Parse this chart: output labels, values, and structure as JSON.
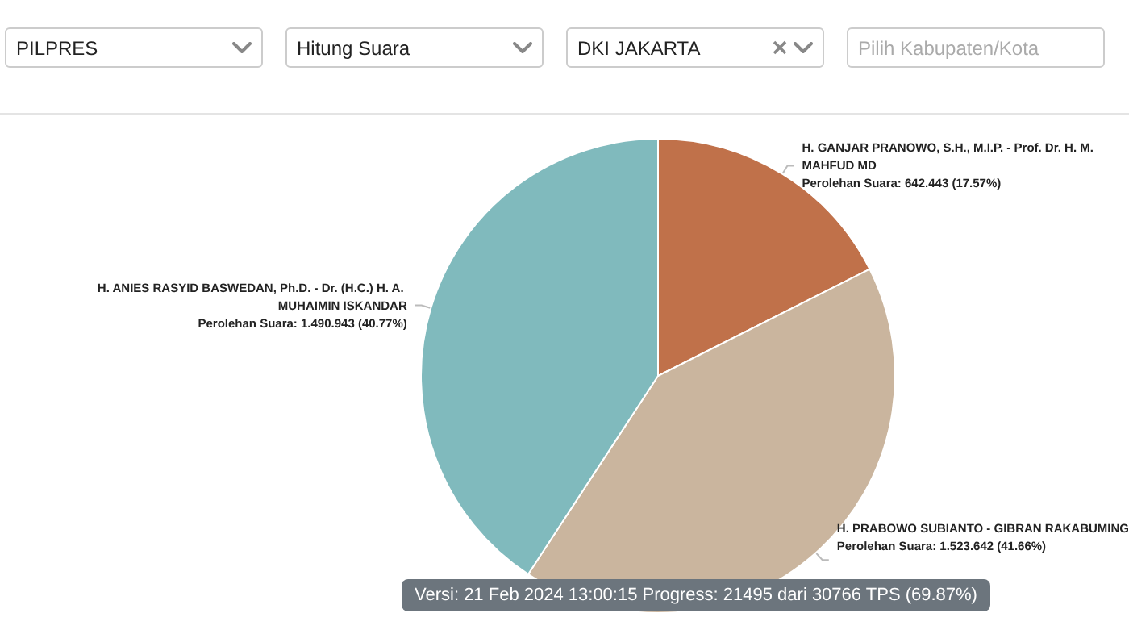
{
  "chart_data": {
    "type": "pie",
    "categories": [
      "H. GANJAR PRANOWO, S.H., M.I.P. - Prof. Dr. H. M. MAHFUD MD",
      "H. PRABOWO SUBIANTO - GIBRAN RAKABUMING",
      "H. ANIES RASYID BASWEDAN, Ph.D. - Dr. (H.C.) H. A. MUHAIMIN ISKANDAR"
    ],
    "values": [
      17.57,
      41.66,
      40.77
    ],
    "value_labels": [
      "Perolehan Suara: 642.443 (17.57%)",
      "Perolehan Suara: 1.523.642 (41.66%)",
      "Perolehan Suara: 1.490.943 (40.77%)"
    ],
    "colors": [
      "#c0714a",
      "#cab59e",
      "#80babd"
    ],
    "legend": false,
    "annotations": [
      "PILPRES",
      "Hitung Suara",
      "DKI JAKARTA",
      "Pilih Kabupaten/Kota",
      "Versi: 21 Feb 2024 13:00:15 Progress: 21495 dari 30766 TPS (69.87%)"
    ]
  }
}
